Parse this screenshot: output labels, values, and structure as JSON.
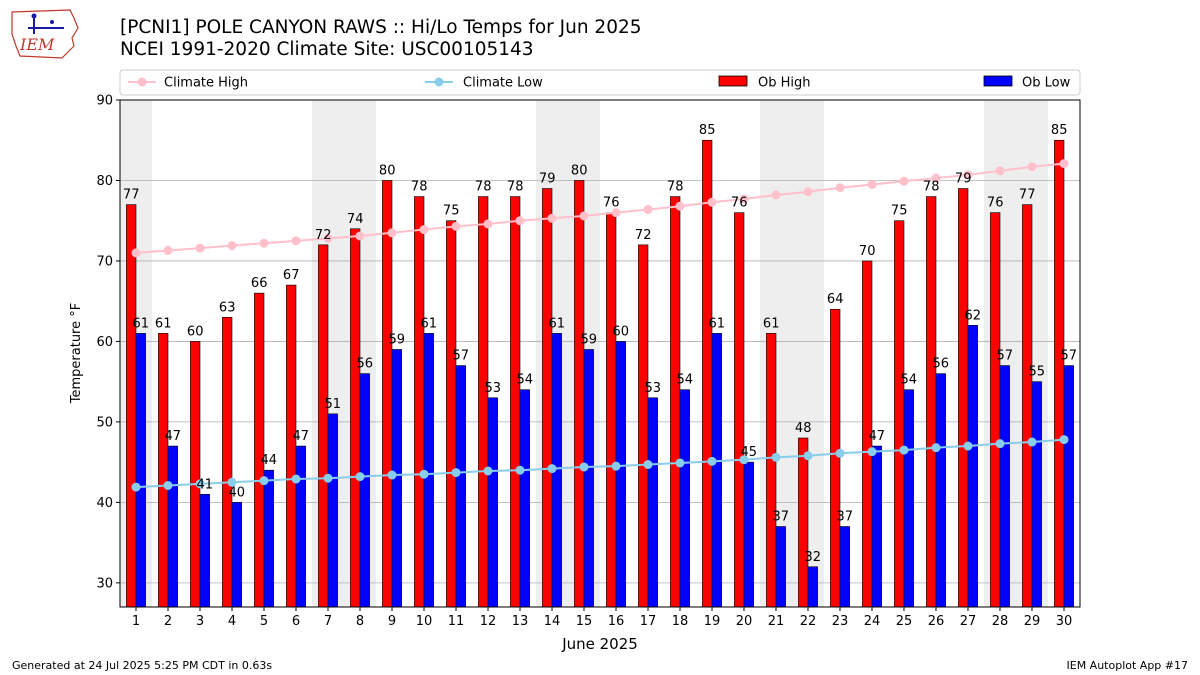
{
  "header": {
    "title_line1": "[PCNI1] POLE CANYON RAWS :: Hi/Lo Temps for Jun 2025",
    "title_line2": "NCEI 1991-2020 Climate Site: USC00105143",
    "logo_text": "IEM"
  },
  "footer": {
    "generated": "Generated at 24 Jul 2025 5:25 PM CDT in 0.63s",
    "app": "IEM Autoplot App #17"
  },
  "colors": {
    "ob_high": "#ff0000",
    "ob_low": "#0000ff",
    "climate_high": "#ffc0cb",
    "climate_low": "#87ceeb",
    "weekend_shade": "#eeeeee"
  },
  "chart_data": {
    "type": "bar",
    "xlabel": "June 2025",
    "ylabel": "Temperature °F",
    "ylim": [
      27,
      90
    ],
    "yticks": [
      30,
      40,
      50,
      60,
      70,
      80,
      90
    ],
    "grid": true,
    "legend_position": "top",
    "categories": [
      "1",
      "2",
      "3",
      "4",
      "5",
      "6",
      "7",
      "8",
      "9",
      "10",
      "11",
      "12",
      "13",
      "14",
      "15",
      "16",
      "17",
      "18",
      "19",
      "20",
      "21",
      "22",
      "23",
      "24",
      "25",
      "26",
      "27",
      "28",
      "29",
      "30"
    ],
    "shaded_days": [
      1,
      7,
      8,
      14,
      15,
      21,
      22,
      28,
      29
    ],
    "series": [
      {
        "name": "Climate High",
        "kind": "line",
        "color": "#ffc0cb",
        "values": [
          71.0,
          71.3,
          71.6,
          71.9,
          72.2,
          72.5,
          72.8,
          73.1,
          73.5,
          73.9,
          74.3,
          74.6,
          75.0,
          75.3,
          75.6,
          76.0,
          76.4,
          76.8,
          77.3,
          77.7,
          78.2,
          78.6,
          79.1,
          79.5,
          79.9,
          80.3,
          80.7,
          81.2,
          81.7,
          82.1
        ]
      },
      {
        "name": "Climate Low",
        "kind": "line",
        "color": "#87ceeb",
        "values": [
          41.9,
          42.1,
          42.3,
          42.5,
          42.7,
          42.9,
          43.0,
          43.2,
          43.4,
          43.5,
          43.7,
          43.9,
          44.0,
          44.2,
          44.4,
          44.5,
          44.7,
          44.9,
          45.1,
          45.3,
          45.6,
          45.8,
          46.1,
          46.3,
          46.5,
          46.8,
          47.0,
          47.3,
          47.5,
          47.8
        ]
      },
      {
        "name": "Ob High",
        "kind": "bar",
        "color": "#ff0000",
        "values": [
          77,
          61,
          60,
          63,
          66,
          67,
          72,
          74,
          80,
          78,
          75,
          78,
          78,
          79,
          80,
          76,
          72,
          78,
          85,
          76,
          61,
          48,
          64,
          70,
          75,
          78,
          79,
          76,
          77,
          85
        ]
      },
      {
        "name": "Ob Low",
        "kind": "bar",
        "color": "#0000ff",
        "values": [
          61,
          47,
          41,
          40,
          44,
          47,
          51,
          56,
          59,
          61,
          57,
          53,
          54,
          61,
          59,
          60,
          53,
          54,
          61,
          45,
          37,
          32,
          37,
          47,
          54,
          56,
          62,
          57,
          55,
          57
        ]
      }
    ]
  }
}
